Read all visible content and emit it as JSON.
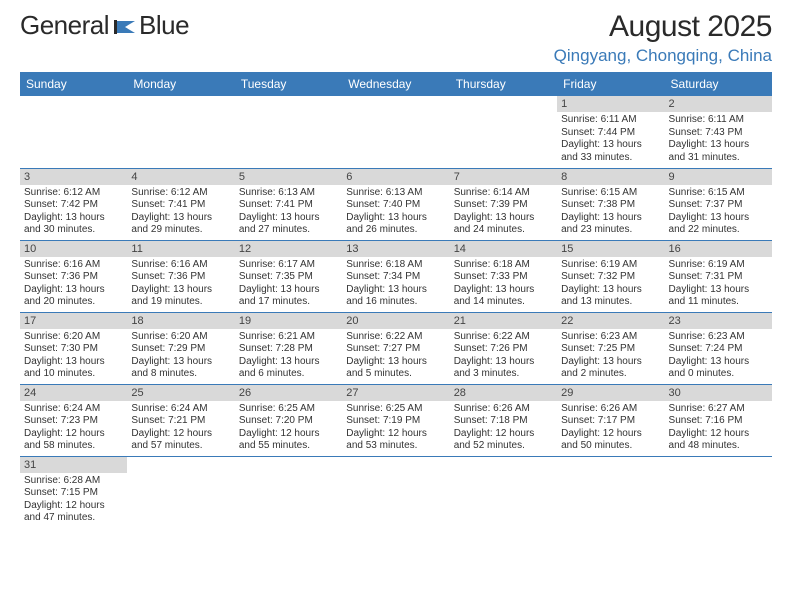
{
  "logo": {
    "text1": "General",
    "text2": "Blue"
  },
  "title": "August 2025",
  "location": "Qingyang, Chongqing, China",
  "colors": {
    "header_bg": "#3a7ab8",
    "header_fg": "#ffffff",
    "daynum_bg": "#d9d9d9",
    "cell_border": "#3a7ab8",
    "logo_accent": "#3a7ab8"
  },
  "weekdays": [
    "Sunday",
    "Monday",
    "Tuesday",
    "Wednesday",
    "Thursday",
    "Friday",
    "Saturday"
  ],
  "weeks": [
    [
      null,
      null,
      null,
      null,
      null,
      {
        "n": "1",
        "sunrise": "Sunrise: 6:11 AM",
        "sunset": "Sunset: 7:44 PM",
        "daylight": "Daylight: 13 hours and 33 minutes."
      },
      {
        "n": "2",
        "sunrise": "Sunrise: 6:11 AM",
        "sunset": "Sunset: 7:43 PM",
        "daylight": "Daylight: 13 hours and 31 minutes."
      }
    ],
    [
      {
        "n": "3",
        "sunrise": "Sunrise: 6:12 AM",
        "sunset": "Sunset: 7:42 PM",
        "daylight": "Daylight: 13 hours and 30 minutes."
      },
      {
        "n": "4",
        "sunrise": "Sunrise: 6:12 AM",
        "sunset": "Sunset: 7:41 PM",
        "daylight": "Daylight: 13 hours and 29 minutes."
      },
      {
        "n": "5",
        "sunrise": "Sunrise: 6:13 AM",
        "sunset": "Sunset: 7:41 PM",
        "daylight": "Daylight: 13 hours and 27 minutes."
      },
      {
        "n": "6",
        "sunrise": "Sunrise: 6:13 AM",
        "sunset": "Sunset: 7:40 PM",
        "daylight": "Daylight: 13 hours and 26 minutes."
      },
      {
        "n": "7",
        "sunrise": "Sunrise: 6:14 AM",
        "sunset": "Sunset: 7:39 PM",
        "daylight": "Daylight: 13 hours and 24 minutes."
      },
      {
        "n": "8",
        "sunrise": "Sunrise: 6:15 AM",
        "sunset": "Sunset: 7:38 PM",
        "daylight": "Daylight: 13 hours and 23 minutes."
      },
      {
        "n": "9",
        "sunrise": "Sunrise: 6:15 AM",
        "sunset": "Sunset: 7:37 PM",
        "daylight": "Daylight: 13 hours and 22 minutes."
      }
    ],
    [
      {
        "n": "10",
        "sunrise": "Sunrise: 6:16 AM",
        "sunset": "Sunset: 7:36 PM",
        "daylight": "Daylight: 13 hours and 20 minutes."
      },
      {
        "n": "11",
        "sunrise": "Sunrise: 6:16 AM",
        "sunset": "Sunset: 7:36 PM",
        "daylight": "Daylight: 13 hours and 19 minutes."
      },
      {
        "n": "12",
        "sunrise": "Sunrise: 6:17 AM",
        "sunset": "Sunset: 7:35 PM",
        "daylight": "Daylight: 13 hours and 17 minutes."
      },
      {
        "n": "13",
        "sunrise": "Sunrise: 6:18 AM",
        "sunset": "Sunset: 7:34 PM",
        "daylight": "Daylight: 13 hours and 16 minutes."
      },
      {
        "n": "14",
        "sunrise": "Sunrise: 6:18 AM",
        "sunset": "Sunset: 7:33 PM",
        "daylight": "Daylight: 13 hours and 14 minutes."
      },
      {
        "n": "15",
        "sunrise": "Sunrise: 6:19 AM",
        "sunset": "Sunset: 7:32 PM",
        "daylight": "Daylight: 13 hours and 13 minutes."
      },
      {
        "n": "16",
        "sunrise": "Sunrise: 6:19 AM",
        "sunset": "Sunset: 7:31 PM",
        "daylight": "Daylight: 13 hours and 11 minutes."
      }
    ],
    [
      {
        "n": "17",
        "sunrise": "Sunrise: 6:20 AM",
        "sunset": "Sunset: 7:30 PM",
        "daylight": "Daylight: 13 hours and 10 minutes."
      },
      {
        "n": "18",
        "sunrise": "Sunrise: 6:20 AM",
        "sunset": "Sunset: 7:29 PM",
        "daylight": "Daylight: 13 hours and 8 minutes."
      },
      {
        "n": "19",
        "sunrise": "Sunrise: 6:21 AM",
        "sunset": "Sunset: 7:28 PM",
        "daylight": "Daylight: 13 hours and 6 minutes."
      },
      {
        "n": "20",
        "sunrise": "Sunrise: 6:22 AM",
        "sunset": "Sunset: 7:27 PM",
        "daylight": "Daylight: 13 hours and 5 minutes."
      },
      {
        "n": "21",
        "sunrise": "Sunrise: 6:22 AM",
        "sunset": "Sunset: 7:26 PM",
        "daylight": "Daylight: 13 hours and 3 minutes."
      },
      {
        "n": "22",
        "sunrise": "Sunrise: 6:23 AM",
        "sunset": "Sunset: 7:25 PM",
        "daylight": "Daylight: 13 hours and 2 minutes."
      },
      {
        "n": "23",
        "sunrise": "Sunrise: 6:23 AM",
        "sunset": "Sunset: 7:24 PM",
        "daylight": "Daylight: 13 hours and 0 minutes."
      }
    ],
    [
      {
        "n": "24",
        "sunrise": "Sunrise: 6:24 AM",
        "sunset": "Sunset: 7:23 PM",
        "daylight": "Daylight: 12 hours and 58 minutes."
      },
      {
        "n": "25",
        "sunrise": "Sunrise: 6:24 AM",
        "sunset": "Sunset: 7:21 PM",
        "daylight": "Daylight: 12 hours and 57 minutes."
      },
      {
        "n": "26",
        "sunrise": "Sunrise: 6:25 AM",
        "sunset": "Sunset: 7:20 PM",
        "daylight": "Daylight: 12 hours and 55 minutes."
      },
      {
        "n": "27",
        "sunrise": "Sunrise: 6:25 AM",
        "sunset": "Sunset: 7:19 PM",
        "daylight": "Daylight: 12 hours and 53 minutes."
      },
      {
        "n": "28",
        "sunrise": "Sunrise: 6:26 AM",
        "sunset": "Sunset: 7:18 PM",
        "daylight": "Daylight: 12 hours and 52 minutes."
      },
      {
        "n": "29",
        "sunrise": "Sunrise: 6:26 AM",
        "sunset": "Sunset: 7:17 PM",
        "daylight": "Daylight: 12 hours and 50 minutes."
      },
      {
        "n": "30",
        "sunrise": "Sunrise: 6:27 AM",
        "sunset": "Sunset: 7:16 PM",
        "daylight": "Daylight: 12 hours and 48 minutes."
      }
    ],
    [
      {
        "n": "31",
        "sunrise": "Sunrise: 6:28 AM",
        "sunset": "Sunset: 7:15 PM",
        "daylight": "Daylight: 12 hours and 47 minutes."
      },
      null,
      null,
      null,
      null,
      null,
      null
    ]
  ]
}
